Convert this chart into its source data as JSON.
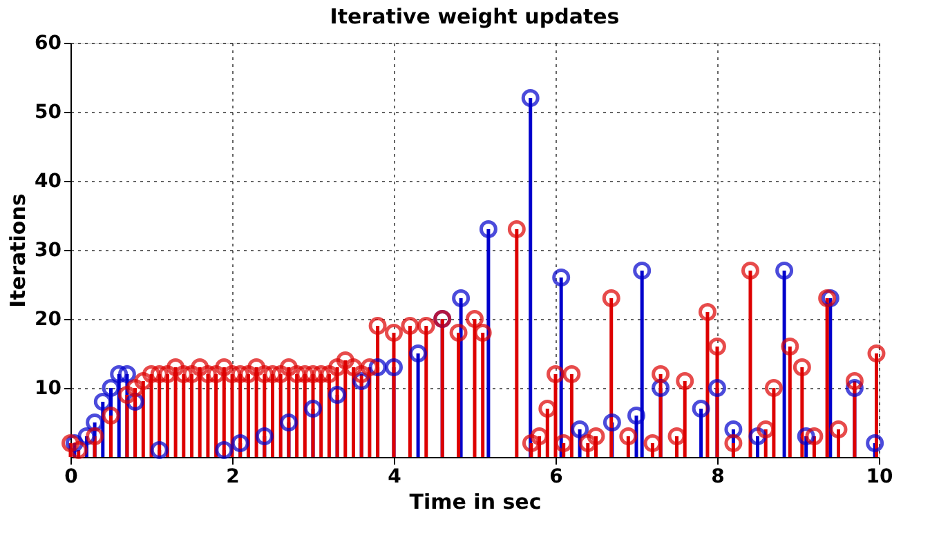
{
  "chart_data": {
    "type": "lollipop",
    "title": "Iterative weight updates",
    "xlabel": "Time in sec",
    "ylabel": "Iterations",
    "xlim": [
      0,
      10
    ],
    "ylim": [
      0,
      60
    ],
    "xticks": [
      0,
      2,
      4,
      6,
      8,
      10
    ],
    "yticks": [
      10,
      20,
      30,
      40,
      50,
      60
    ],
    "grid": true,
    "marker": "circle",
    "series": [
      {
        "color": "#0000cc",
        "x": [
          0.05,
          0.2,
          0.3,
          0.4,
          0.5,
          0.6,
          0.7,
          0.8,
          1.1,
          1.9,
          2.1,
          2.4,
          2.7,
          3.0,
          3.3,
          3.6,
          3.8,
          4.0,
          4.3,
          4.6,
          4.83,
          5.17,
          5.69,
          6.07,
          6.3,
          6.7,
          7.0,
          7.07,
          7.3,
          7.8,
          8.0,
          8.2,
          8.5,
          8.83,
          9.1,
          9.4,
          9.7,
          9.95
        ],
        "values": [
          2,
          3,
          5,
          8,
          10,
          12,
          12,
          8,
          1,
          1,
          2,
          3,
          5,
          7,
          9,
          11,
          13,
          13,
          15,
          20,
          23,
          33,
          52,
          26,
          4,
          5,
          6,
          27,
          10,
          7,
          10,
          4,
          3,
          27,
          3,
          23,
          10,
          2
        ]
      },
      {
        "color": "#dd0000",
        "x": [
          0.0,
          0.1,
          0.3,
          0.5,
          0.7,
          0.8,
          0.9,
          1.0,
          1.1,
          1.2,
          1.3,
          1.4,
          1.5,
          1.6,
          1.7,
          1.8,
          1.9,
          2.0,
          2.1,
          2.2,
          2.3,
          2.4,
          2.5,
          2.6,
          2.7,
          2.8,
          2.9,
          3.0,
          3.1,
          3.2,
          3.3,
          3.4,
          3.5,
          3.6,
          3.7,
          3.8,
          4.0,
          4.2,
          4.4,
          4.6,
          4.8,
          5.0,
          5.1,
          5.52,
          5.7,
          5.8,
          5.9,
          6.0,
          6.1,
          6.2,
          6.4,
          6.5,
          6.69,
          6.9,
          7.2,
          7.3,
          7.5,
          7.6,
          7.88,
          8.0,
          8.2,
          8.41,
          8.6,
          8.7,
          8.9,
          9.05,
          9.2,
          9.36,
          9.5,
          9.7,
          9.97
        ],
        "values": [
          2,
          1,
          3,
          6,
          9,
          10,
          11,
          12,
          12,
          12,
          13,
          12,
          12,
          13,
          12,
          12,
          13,
          12,
          12,
          12,
          13,
          12,
          12,
          12,
          13,
          12,
          12,
          12,
          12,
          12,
          13,
          14,
          13,
          12,
          13,
          19,
          18,
          19,
          19,
          20,
          18,
          20,
          18,
          33,
          2,
          3,
          7,
          12,
          2,
          12,
          2,
          3,
          23,
          3,
          2,
          12,
          3,
          11,
          21,
          16,
          2,
          27,
          4,
          10,
          16,
          13,
          3,
          23,
          4,
          11,
          15
        ]
      }
    ]
  }
}
